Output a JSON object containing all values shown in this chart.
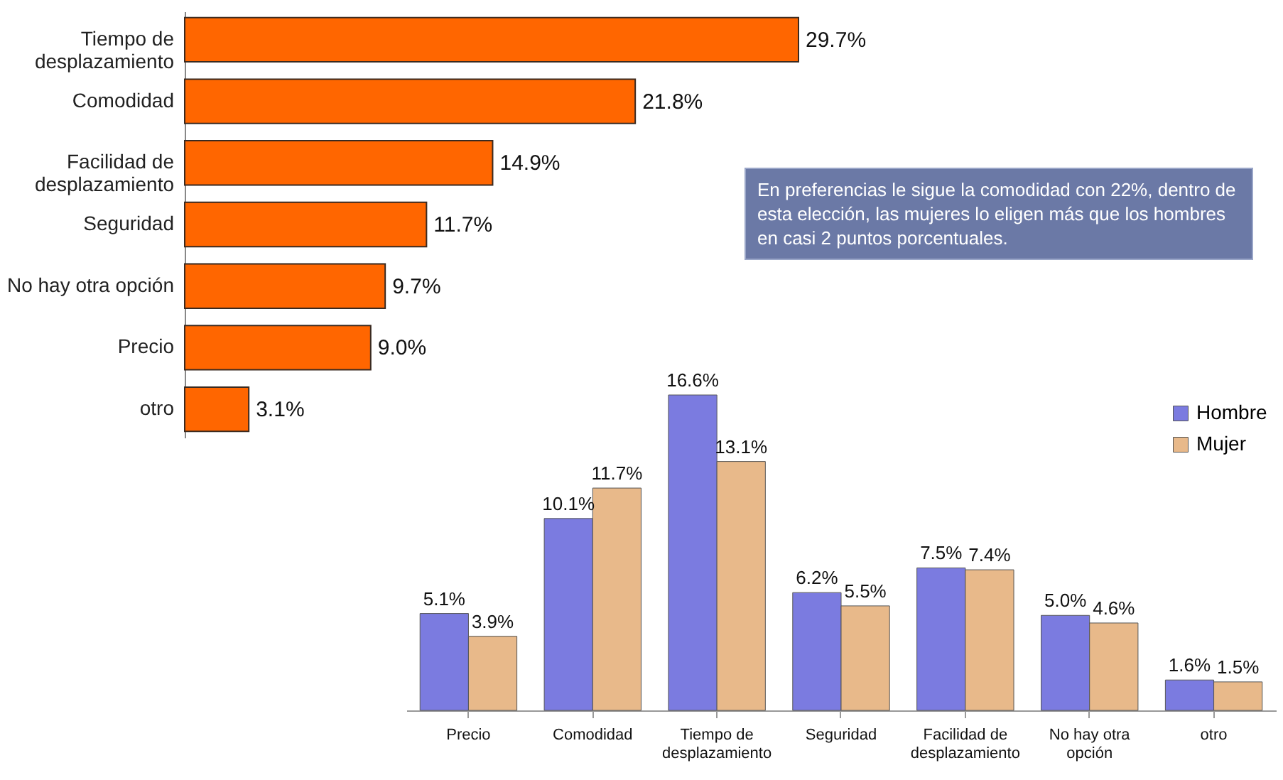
{
  "chart_data": [
    {
      "type": "bar",
      "orientation": "horizontal",
      "categories": [
        "Tiempo de desplazamiento",
        "Comodidad",
        "Facilidad de desplazamiento",
        "Seguridad",
        "No hay otra opción",
        "Precio",
        "otro"
      ],
      "values": [
        29.7,
        21.8,
        14.9,
        11.7,
        9.7,
        9.0,
        3.1
      ],
      "value_labels": [
        "29.7%",
        "21.8%",
        "14.9%",
        "11.7%",
        "9.7%",
        "9.0%",
        "3.1%"
      ],
      "color": "#ff6600",
      "tick_labels": "y",
      "annotations": [
        "En preferencias le sigue la comodidad con 22%, dentro de esta elección, las mujeres lo eligen más que los hombres en casi 2 puntos porcentuales."
      ]
    },
    {
      "type": "bar",
      "categories": [
        "Precio",
        "Comodidad",
        "Tiempo de desplazamiento",
        "Seguridad",
        "Facilidad de desplazamiento",
        "No hay otra opción",
        "otro"
      ],
      "series": [
        {
          "name": "Hombre",
          "color": "#7b7be0",
          "values": [
            5.1,
            10.1,
            16.6,
            6.2,
            7.5,
            5.0,
            1.6
          ],
          "value_labels": [
            "5.1%",
            "10.1%",
            "16.6%",
            "6.2%",
            "7.5%",
            "5.0%",
            "1.6%"
          ]
        },
        {
          "name": "Mujer",
          "color": "#e8b98a",
          "values": [
            3.9,
            11.7,
            13.1,
            5.5,
            7.4,
            4.6,
            1.5
          ],
          "value_labels": [
            "3.9%",
            "11.7%",
            "13.1%",
            "5.5%",
            "7.4%",
            "4.6%",
            "1.5%"
          ]
        }
      ],
      "tick_labels": "x",
      "legend": "top right"
    }
  ]
}
